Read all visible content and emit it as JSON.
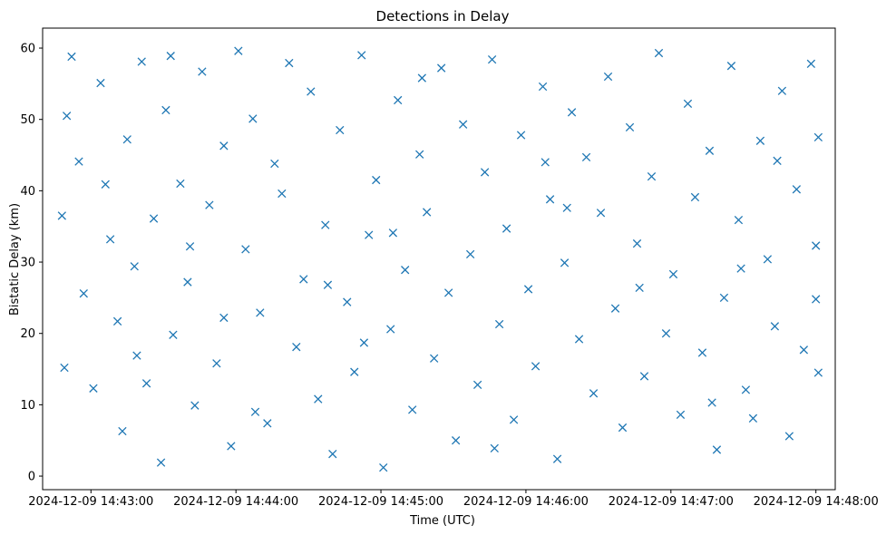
{
  "chart_data": {
    "type": "scatter",
    "title": "Detections in Delay",
    "xlabel": "Time (UTC)",
    "ylabel": "Bistatic Delay (km)",
    "x_tick_labels": [
      "2024-12-09 14:43:00",
      "2024-12-09 14:44:00",
      "2024-12-09 14:45:00",
      "2024-12-09 14:46:00",
      "2024-12-09 14:47:00",
      "2024-12-09 14:48:00"
    ],
    "y_tick_labels": [
      "0",
      "10",
      "20",
      "30",
      "40",
      "50",
      "60"
    ],
    "y_ticks": [
      0,
      10,
      20,
      30,
      40,
      50,
      60
    ],
    "xlim": [
      "2024-12-09 14:42:40",
      "2024-12-09 14:48:08"
    ],
    "ylim": [
      -1.9,
      62.8
    ],
    "grid": false,
    "legend": "none",
    "marker": "x",
    "series": [
      {
        "color": "#1f77b4",
        "points": [
          {
            "t": "2024-12-09 14:42:48",
            "y": 36.5
          },
          {
            "t": "2024-12-09 14:42:50",
            "y": 50.5
          },
          {
            "t": "2024-12-09 14:42:52",
            "y": 58.8
          },
          {
            "t": "2024-12-09 14:42:49",
            "y": 15.2
          },
          {
            "t": "2024-12-09 14:42:55",
            "y": 44.1
          },
          {
            "t": "2024-12-09 14:42:57",
            "y": 25.6
          },
          {
            "t": "2024-12-09 14:43:01",
            "y": 12.3
          },
          {
            "t": "2024-12-09 14:43:04",
            "y": 55.1
          },
          {
            "t": "2024-12-09 14:43:06",
            "y": 40.9
          },
          {
            "t": "2024-12-09 14:43:08",
            "y": 33.2
          },
          {
            "t": "2024-12-09 14:43:11",
            "y": 21.7
          },
          {
            "t": "2024-12-09 14:43:13",
            "y": 6.3
          },
          {
            "t": "2024-12-09 14:43:15",
            "y": 47.2
          },
          {
            "t": "2024-12-09 14:43:18",
            "y": 29.4
          },
          {
            "t": "2024-12-09 14:43:21",
            "y": 58.1
          },
          {
            "t": "2024-12-09 14:43:23",
            "y": 13.0
          },
          {
            "t": "2024-12-09 14:43:26",
            "y": 36.1
          },
          {
            "t": "2024-12-09 14:43:29",
            "y": 1.9
          },
          {
            "t": "2024-12-09 14:43:31",
            "y": 51.3
          },
          {
            "t": "2024-12-09 14:43:34",
            "y": 19.8
          },
          {
            "t": "2024-12-09 14:43:37",
            "y": 41.0
          },
          {
            "t": "2024-12-09 14:43:40",
            "y": 27.2
          },
          {
            "t": "2024-12-09 14:43:43",
            "y": 9.9
          },
          {
            "t": "2024-12-09 14:43:46",
            "y": 56.7
          },
          {
            "t": "2024-12-09 14:43:49",
            "y": 38.0
          },
          {
            "t": "2024-12-09 14:43:52",
            "y": 15.8
          },
          {
            "t": "2024-12-09 14:43:55",
            "y": 46.3
          },
          {
            "t": "2024-12-09 14:43:58",
            "y": 4.2
          },
          {
            "t": "2024-12-09 14:44:01",
            "y": 59.6
          },
          {
            "t": "2024-12-09 14:44:04",
            "y": 31.8
          },
          {
            "t": "2024-12-09 14:44:07",
            "y": 50.1
          },
          {
            "t": "2024-12-09 14:44:10",
            "y": 22.9
          },
          {
            "t": "2024-12-09 14:44:13",
            "y": 7.4
          },
          {
            "t": "2024-12-09 14:44:16",
            "y": 43.8
          },
          {
            "t": "2024-12-09 14:44:19",
            "y": 39.6
          },
          {
            "t": "2024-12-09 14:44:22",
            "y": 57.9
          },
          {
            "t": "2024-12-09 14:44:25",
            "y": 18.1
          },
          {
            "t": "2024-12-09 14:44:28",
            "y": 27.6
          },
          {
            "t": "2024-12-09 14:44:31",
            "y": 53.9
          },
          {
            "t": "2024-12-09 14:44:34",
            "y": 10.8
          },
          {
            "t": "2024-12-09 14:44:37",
            "y": 35.2
          },
          {
            "t": "2024-12-09 14:44:40",
            "y": 3.1
          },
          {
            "t": "2024-12-09 14:44:43",
            "y": 48.5
          },
          {
            "t": "2024-12-09 14:44:46",
            "y": 24.4
          },
          {
            "t": "2024-12-09 14:44:49",
            "y": 14.6
          },
          {
            "t": "2024-12-09 14:44:52",
            "y": 59.0
          },
          {
            "t": "2024-12-09 14:44:55",
            "y": 33.8
          },
          {
            "t": "2024-12-09 14:44:58",
            "y": 41.5
          },
          {
            "t": "2024-12-09 14:45:01",
            "y": 1.2
          },
          {
            "t": "2024-12-09 14:45:04",
            "y": 20.6
          },
          {
            "t": "2024-12-09 14:45:07",
            "y": 52.7
          },
          {
            "t": "2024-12-09 14:45:10",
            "y": 28.9
          },
          {
            "t": "2024-12-09 14:45:13",
            "y": 9.3
          },
          {
            "t": "2024-12-09 14:45:16",
            "y": 45.1
          },
          {
            "t": "2024-12-09 14:45:19",
            "y": 37.0
          },
          {
            "t": "2024-12-09 14:45:22",
            "y": 16.5
          },
          {
            "t": "2024-12-09 14:45:25",
            "y": 57.2
          },
          {
            "t": "2024-12-09 14:45:28",
            "y": 25.7
          },
          {
            "t": "2024-12-09 14:45:31",
            "y": 5.0
          },
          {
            "t": "2024-12-09 14:45:34",
            "y": 49.3
          },
          {
            "t": "2024-12-09 14:45:37",
            "y": 31.1
          },
          {
            "t": "2024-12-09 14:45:40",
            "y": 12.8
          },
          {
            "t": "2024-12-09 14:45:43",
            "y": 42.6
          },
          {
            "t": "2024-12-09 14:45:46",
            "y": 58.4
          },
          {
            "t": "2024-12-09 14:45:49",
            "y": 21.3
          },
          {
            "t": "2024-12-09 14:45:52",
            "y": 34.7
          },
          {
            "t": "2024-12-09 14:45:55",
            "y": 7.9
          },
          {
            "t": "2024-12-09 14:45:58",
            "y": 47.8
          },
          {
            "t": "2024-12-09 14:46:01",
            "y": 26.2
          },
          {
            "t": "2024-12-09 14:46:04",
            "y": 15.4
          },
          {
            "t": "2024-12-09 14:46:07",
            "y": 54.6
          },
          {
            "t": "2024-12-09 14:46:10",
            "y": 38.8
          },
          {
            "t": "2024-12-09 14:46:13",
            "y": 2.4
          },
          {
            "t": "2024-12-09 14:46:16",
            "y": 29.9
          },
          {
            "t": "2024-12-09 14:46:19",
            "y": 51.0
          },
          {
            "t": "2024-12-09 14:46:22",
            "y": 19.2
          },
          {
            "t": "2024-12-09 14:46:25",
            "y": 44.7
          },
          {
            "t": "2024-12-09 14:46:28",
            "y": 11.6
          },
          {
            "t": "2024-12-09 14:46:31",
            "y": 36.9
          },
          {
            "t": "2024-12-09 14:46:34",
            "y": 56.0
          },
          {
            "t": "2024-12-09 14:46:37",
            "y": 23.5
          },
          {
            "t": "2024-12-09 14:46:40",
            "y": 6.8
          },
          {
            "t": "2024-12-09 14:46:43",
            "y": 48.9
          },
          {
            "t": "2024-12-09 14:46:46",
            "y": 32.6
          },
          {
            "t": "2024-12-09 14:46:49",
            "y": 14.0
          },
          {
            "t": "2024-12-09 14:46:52",
            "y": 42.0
          },
          {
            "t": "2024-12-09 14:46:55",
            "y": 59.3
          },
          {
            "t": "2024-12-09 14:46:58",
            "y": 20.0
          },
          {
            "t": "2024-12-09 14:47:01",
            "y": 28.3
          },
          {
            "t": "2024-12-09 14:47:04",
            "y": 8.6
          },
          {
            "t": "2024-12-09 14:47:07",
            "y": 52.2
          },
          {
            "t": "2024-12-09 14:47:10",
            "y": 39.1
          },
          {
            "t": "2024-12-09 14:47:13",
            "y": 17.3
          },
          {
            "t": "2024-12-09 14:47:16",
            "y": 45.6
          },
          {
            "t": "2024-12-09 14:47:19",
            "y": 3.7
          },
          {
            "t": "2024-12-09 14:47:22",
            "y": 25.0
          },
          {
            "t": "2024-12-09 14:47:25",
            "y": 57.5
          },
          {
            "t": "2024-12-09 14:47:28",
            "y": 35.9
          },
          {
            "t": "2024-12-09 14:47:31",
            "y": 12.1
          },
          {
            "t": "2024-12-09 14:47:34",
            "y": 8.1
          },
          {
            "t": "2024-12-09 14:47:37",
            "y": 47.0
          },
          {
            "t": "2024-12-09 14:47:40",
            "y": 30.4
          },
          {
            "t": "2024-12-09 14:47:43",
            "y": 21.0
          },
          {
            "t": "2024-12-09 14:47:46",
            "y": 54.0
          },
          {
            "t": "2024-12-09 14:47:49",
            "y": 5.6
          },
          {
            "t": "2024-12-09 14:47:52",
            "y": 40.2
          },
          {
            "t": "2024-12-09 14:47:55",
            "y": 17.7
          },
          {
            "t": "2024-12-09 14:47:58",
            "y": 57.8
          },
          {
            "t": "2024-12-09 14:48:00",
            "y": 32.3
          },
          {
            "t": "2024-12-09 14:48:01",
            "y": 47.5
          },
          {
            "t": "2024-12-09 14:48:01",
            "y": 14.5
          },
          {
            "t": "2024-12-09 14:48:00",
            "y": 24.8
          },
          {
            "t": "2024-12-09 14:43:19",
            "y": 16.9
          },
          {
            "t": "2024-12-09 14:43:41",
            "y": 32.2
          },
          {
            "t": "2024-12-09 14:44:08",
            "y": 9.0
          },
          {
            "t": "2024-12-09 14:44:38",
            "y": 26.8
          },
          {
            "t": "2024-12-09 14:45:17",
            "y": 55.8
          },
          {
            "t": "2024-12-09 14:45:47",
            "y": 3.9
          },
          {
            "t": "2024-12-09 14:46:17",
            "y": 37.6
          },
          {
            "t": "2024-12-09 14:46:47",
            "y": 26.4
          },
          {
            "t": "2024-12-09 14:47:17",
            "y": 10.3
          },
          {
            "t": "2024-12-09 14:47:44",
            "y": 44.2
          },
          {
            "t": "2024-12-09 14:43:33",
            "y": 58.9
          },
          {
            "t": "2024-12-09 14:44:53",
            "y": 18.7
          },
          {
            "t": "2024-12-09 14:46:08",
            "y": 44.0
          },
          {
            "t": "2024-12-09 14:47:29",
            "y": 29.1
          },
          {
            "t": "2024-12-09 14:45:05",
            "y": 34.1
          },
          {
            "t": "2024-12-09 14:43:55",
            "y": 22.2
          }
        ]
      }
    ]
  }
}
